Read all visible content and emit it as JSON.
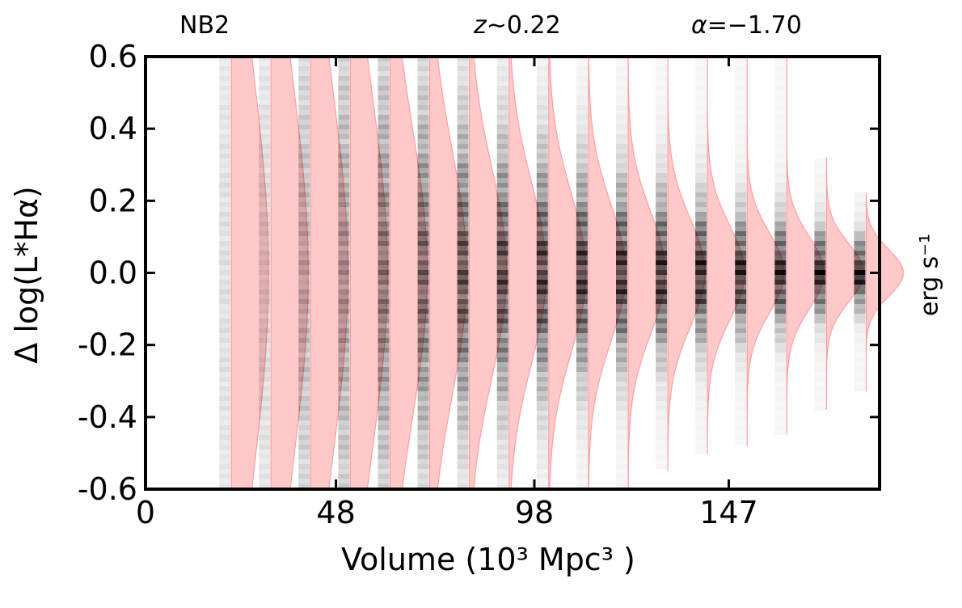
{
  "header": {
    "filter": "NB2",
    "redshift_symbol": "z",
    "redshift_rest": "∼0.22",
    "alpha_symbol": "α",
    "alpha_rest": "=−1.70"
  },
  "chart_data": {
    "type": "heatmap",
    "title": "",
    "xlabel": "Volume (10³ Mpc³ )",
    "ylabel": "Δ log(L*Hα)",
    "units_label": "erg s⁻¹",
    "xlim": [
      0,
      185
    ],
    "ylim": [
      -0.6,
      0.6
    ],
    "x_tick_labels": [
      "0",
      "48",
      "98",
      "147"
    ],
    "x_tick_values": [
      0,
      48,
      98,
      147
    ],
    "y_tick_labels": [
      "-0.6",
      "-0.4",
      "-0.2",
      "0.0",
      "0.2",
      "0.4",
      "0.6"
    ],
    "y_tick_values": [
      -0.6,
      -0.4,
      -0.2,
      0.0,
      0.2,
      0.4,
      0.6
    ],
    "grid": false,
    "bin_volumes": [
      20,
      30,
      40,
      50,
      60,
      70,
      80,
      90,
      100,
      110,
      120,
      130,
      140,
      150,
      160,
      170,
      180
    ],
    "bin_sigma": [
      0.55,
      0.52,
      0.5,
      0.48,
      0.4,
      0.34,
      0.29,
      0.25,
      0.22,
      0.19,
      0.17,
      0.15,
      0.13,
      0.11,
      0.1,
      0.08,
      0.065
    ],
    "bin_y_extent_low": [
      -0.6,
      -0.6,
      -0.6,
      -0.6,
      -0.6,
      -0.6,
      -0.6,
      -0.6,
      -0.6,
      -0.6,
      -0.6,
      -0.55,
      -0.5,
      -0.48,
      -0.45,
      -0.38,
      -0.33
    ],
    "bin_y_extent_high": [
      0.6,
      0.6,
      0.6,
      0.6,
      0.6,
      0.6,
      0.6,
      0.6,
      0.6,
      0.6,
      0.6,
      0.6,
      0.6,
      0.6,
      0.6,
      0.32,
      0.22
    ],
    "bin_peak_darkness": [
      0.12,
      0.15,
      0.3,
      0.4,
      0.55,
      0.65,
      0.75,
      0.8,
      0.85,
      0.88,
      0.9,
      0.92,
      0.94,
      0.95,
      0.96,
      0.98,
      1.0
    ],
    "distribution_color": "#ffbfc1",
    "distribution_edge_color": "#ff9ea2",
    "histogram_color": "#000000"
  }
}
